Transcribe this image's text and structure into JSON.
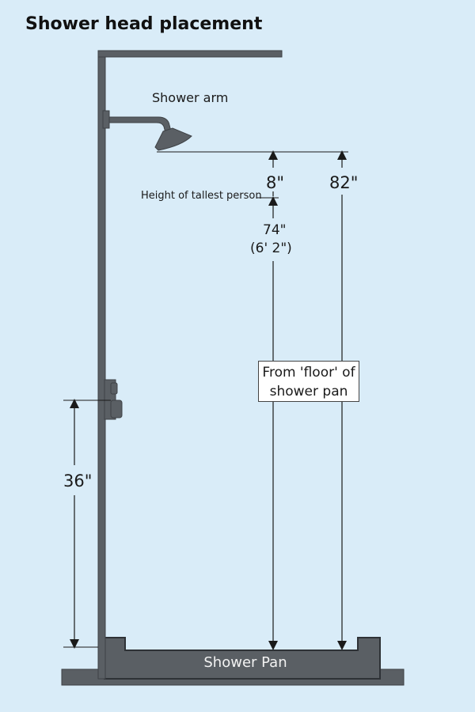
{
  "title": "Shower head placement",
  "labels": {
    "shower_arm": "Shower arm",
    "tallest_person": "Height of tallest person",
    "gap": "8\"",
    "total": "82\"",
    "person_height": "74\"",
    "person_height_ft": "(6'  2\")",
    "valve_height": "36\"",
    "floor_note_line1": "From 'floor' of",
    "floor_note_line2": "shower pan",
    "shower_pan": "Shower Pan"
  },
  "colors": {
    "background": "#d9ecf8",
    "fixture": "#5a5f64",
    "fixture_dark": "#3e4246",
    "dimension_line": "#1a1a1a"
  }
}
